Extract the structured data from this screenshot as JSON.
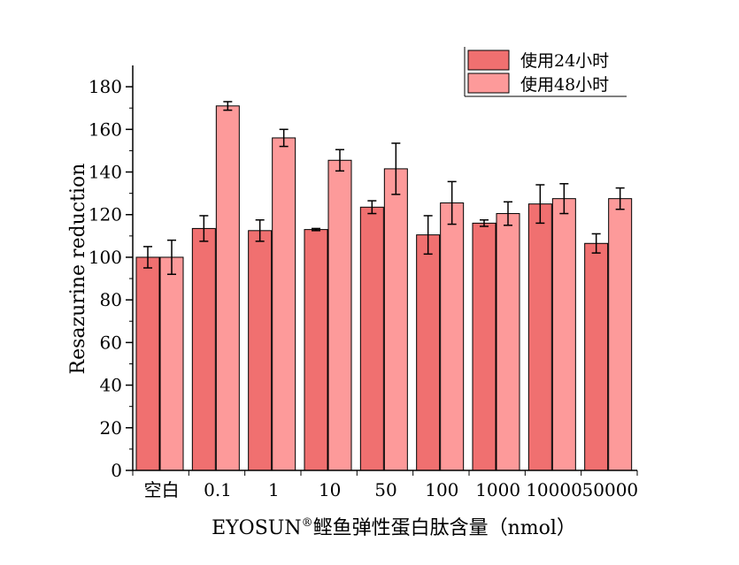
{
  "chart_data": {
    "type": "bar",
    "categories": [
      "空白",
      "0.1",
      "1",
      "10",
      "50",
      "100",
      "1000",
      "10000",
      "50000"
    ],
    "series": [
      {
        "name": "使用24小时",
        "color": "#f07070",
        "values": [
          100,
          113.5,
          112.5,
          113,
          123.5,
          110.5,
          116,
          125,
          106.5
        ],
        "errors": [
          5,
          6,
          5,
          0.5,
          3,
          9,
          1.5,
          9,
          4.5
        ]
      },
      {
        "name": "使用48小时",
        "color": "#fd9a9a",
        "values": [
          100,
          171,
          156,
          145.5,
          141.5,
          125.5,
          120.5,
          127.5,
          127.5
        ],
        "errors": [
          8,
          2,
          4,
          5,
          12,
          10,
          5.5,
          7,
          5
        ]
      }
    ],
    "xlabel": "EYOSUN",
    "xlabel_superscript": "®",
    "xlabel_suffix": "鲣鱼弹性蛋白肽含量（nmol）",
    "ylabel": "Resazurine reduction",
    "ylim": [
      0,
      190
    ],
    "yticks": [
      0,
      20,
      40,
      60,
      80,
      100,
      120,
      140,
      160,
      180
    ],
    "legend_position": "top-right",
    "grid": false
  }
}
